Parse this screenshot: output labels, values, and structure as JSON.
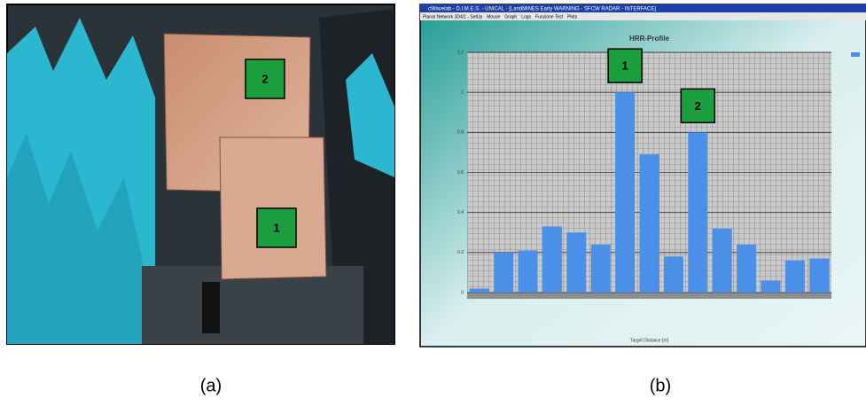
{
  "photo": {
    "labels": [
      "2",
      "1"
    ],
    "caption": "(a)"
  },
  "window": {
    "title": "cWavelab - D.I.M.E.S. - UNICAL - [LandMiNES Early WARNING - SFCW RADAR - INTERFACE]",
    "tabs": [
      "Planar Network 3D4/1 - SetUp",
      "Mouse",
      "Graph",
      "Logs",
      "Funzione Test",
      "Plots"
    ],
    "caption": "(b)"
  },
  "chart_data": {
    "type": "bar",
    "title": "HRR-Profile",
    "x_label": "Target Distance [m]",
    "categories": [
      null,
      null,
      null,
      null,
      null,
      null,
      null,
      null,
      null,
      null,
      null,
      null,
      null,
      null,
      null
    ],
    "values": [
      0.02,
      0.2,
      0.21,
      0.33,
      0.3,
      0.24,
      1.0,
      0.69,
      0.18,
      0.8,
      0.32,
      0.24,
      0.06,
      0.16,
      0.17
    ],
    "color": "#4a8fe8",
    "ylim": [
      0,
      1.2
    ],
    "yticks": [
      0,
      0.2,
      0.4,
      0.6,
      0.8,
      1,
      1.2
    ],
    "grid": true,
    "annotations": [
      {
        "text": "1",
        "category_index": 6
      },
      {
        "text": "2",
        "category_index": 9
      }
    ]
  }
}
